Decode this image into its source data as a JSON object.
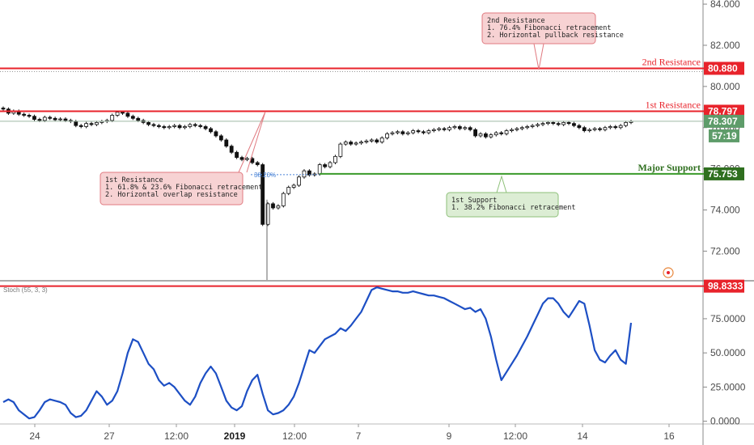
{
  "chart_data": {
    "type": "candlestick",
    "price_axis": {
      "ticks": [
        "84.000",
        "82.000",
        "80.000",
        "78.000",
        "76.000",
        "74.000",
        "72.000"
      ],
      "tick_values": [
        84,
        82,
        80,
        78,
        76,
        74,
        72
      ],
      "ylim": [
        70.6,
        84.2
      ]
    },
    "x_axis": {
      "labels": [
        "24",
        "27",
        "12:00",
        "2019",
        "12:00",
        "7",
        "9",
        "12:00",
        "14",
        "16"
      ],
      "bold_label": "2019"
    },
    "levels": [
      {
        "name": "2nd Resistance",
        "value": 80.88,
        "tag": "80.880",
        "color": "#e8232b"
      },
      {
        "name": "1st Resistance",
        "value": 78.797,
        "tag": "78.797",
        "color": "#e8232b"
      },
      {
        "name": "Major Support",
        "value": 75.753,
        "tag": "75.753",
        "color": "#2f6f1f"
      }
    ],
    "current_price": {
      "value": 78.307,
      "tag": "78.307",
      "countdown": "57:19",
      "color": "#5e9c6a"
    },
    "fib_label": "38.20%",
    "annotations": [
      {
        "id": "second-resistance",
        "lines": [
          "2nd Resistance",
          "1. 76.4% Fibonacci retracement",
          "2. Horizontal pullback resistance"
        ],
        "kind": "resistance"
      },
      {
        "id": "first-resistance",
        "lines": [
          "1st Resistance",
          "1. 61.8% & 23.6% Fibonacci retracement",
          "2. Horizontal overlap resistance"
        ],
        "kind": "resistance"
      },
      {
        "id": "first-support",
        "lines": [
          "1st Support",
          "1. 38.2% Fibonacci retracement"
        ],
        "kind": "support"
      }
    ],
    "closes": [
      78.9,
      78.7,
      78.8,
      78.65,
      78.6,
      78.55,
      78.4,
      78.35,
      78.5,
      78.45,
      78.38,
      78.42,
      78.35,
      78.3,
      78.1,
      78.05,
      78.2,
      78.15,
      78.25,
      78.3,
      78.35,
      78.6,
      78.75,
      78.7,
      78.55,
      78.45,
      78.35,
      78.25,
      78.15,
      78.1,
      78.05,
      78.0,
      78.05,
      78.1,
      78.0,
      78.05,
      78.15,
      78.1,
      78.05,
      77.95,
      77.8,
      77.6,
      77.4,
      77.1,
      76.8,
      76.55,
      76.45,
      76.5,
      76.3,
      76.2,
      73.3,
      74.3,
      74.1,
      74.2,
      74.8,
      75.1,
      75.2,
      75.6,
      75.9,
      75.7,
      75.75,
      76.2,
      76.1,
      76.3,
      76.6,
      77.2,
      77.3,
      77.2,
      77.25,
      77.3,
      77.35,
      77.4,
      77.3,
      77.5,
      77.7,
      77.75,
      77.8,
      77.7,
      77.75,
      77.85,
      77.8,
      77.75,
      77.85,
      77.9,
      77.95,
      77.9,
      78.0,
      78.05,
      77.95,
      78.0,
      77.9,
      77.6,
      77.7,
      77.55,
      77.65,
      77.75,
      77.7,
      77.85,
      77.9,
      77.95,
      78.0,
      78.05,
      78.1,
      78.15,
      78.2,
      78.25,
      78.2,
      78.15,
      78.25,
      78.2,
      78.1,
      78.0,
      77.85,
      77.9,
      77.95,
      77.9,
      78.0,
      78.05,
      78.0,
      78.1,
      78.25,
      78.3
    ]
  },
  "stoch": {
    "label": "Stoch (55, 3, 3)",
    "axis_ticks": [
      "75.0000",
      "50.0000",
      "25.0000",
      "0.0000"
    ],
    "tick_values": [
      75,
      50,
      25,
      0
    ],
    "ylim": [
      -2,
      101
    ],
    "level": {
      "value": 98.8333,
      "tag": "98.8333",
      "color": "#e8232b"
    },
    "values": [
      14,
      16,
      14,
      8,
      5,
      2,
      3,
      8,
      14,
      16,
      15,
      14,
      12,
      6,
      3,
      4,
      8,
      15,
      22,
      18,
      12,
      15,
      22,
      35,
      50,
      60,
      58,
      50,
      42,
      38,
      30,
      26,
      28,
      25,
      20,
      15,
      12,
      18,
      28,
      35,
      40,
      35,
      25,
      15,
      10,
      8,
      11,
      22,
      30,
      34,
      20,
      8,
      5,
      6,
      8,
      12,
      18,
      28,
      40,
      52,
      50,
      55,
      60,
      62,
      64,
      68,
      66,
      70,
      75,
      80,
      88,
      96,
      98,
      97,
      96,
      95,
      95,
      94,
      94,
      95,
      94,
      93,
      92,
      92,
      91,
      90,
      88,
      86,
      84,
      82,
      83,
      80,
      82,
      75,
      62,
      45,
      30,
      36,
      42,
      48,
      55,
      62,
      70,
      78,
      86,
      90,
      90,
      86,
      80,
      76,
      82,
      88,
      86,
      70,
      52,
      45,
      43,
      48,
      52,
      45,
      42,
      72
    ]
  }
}
